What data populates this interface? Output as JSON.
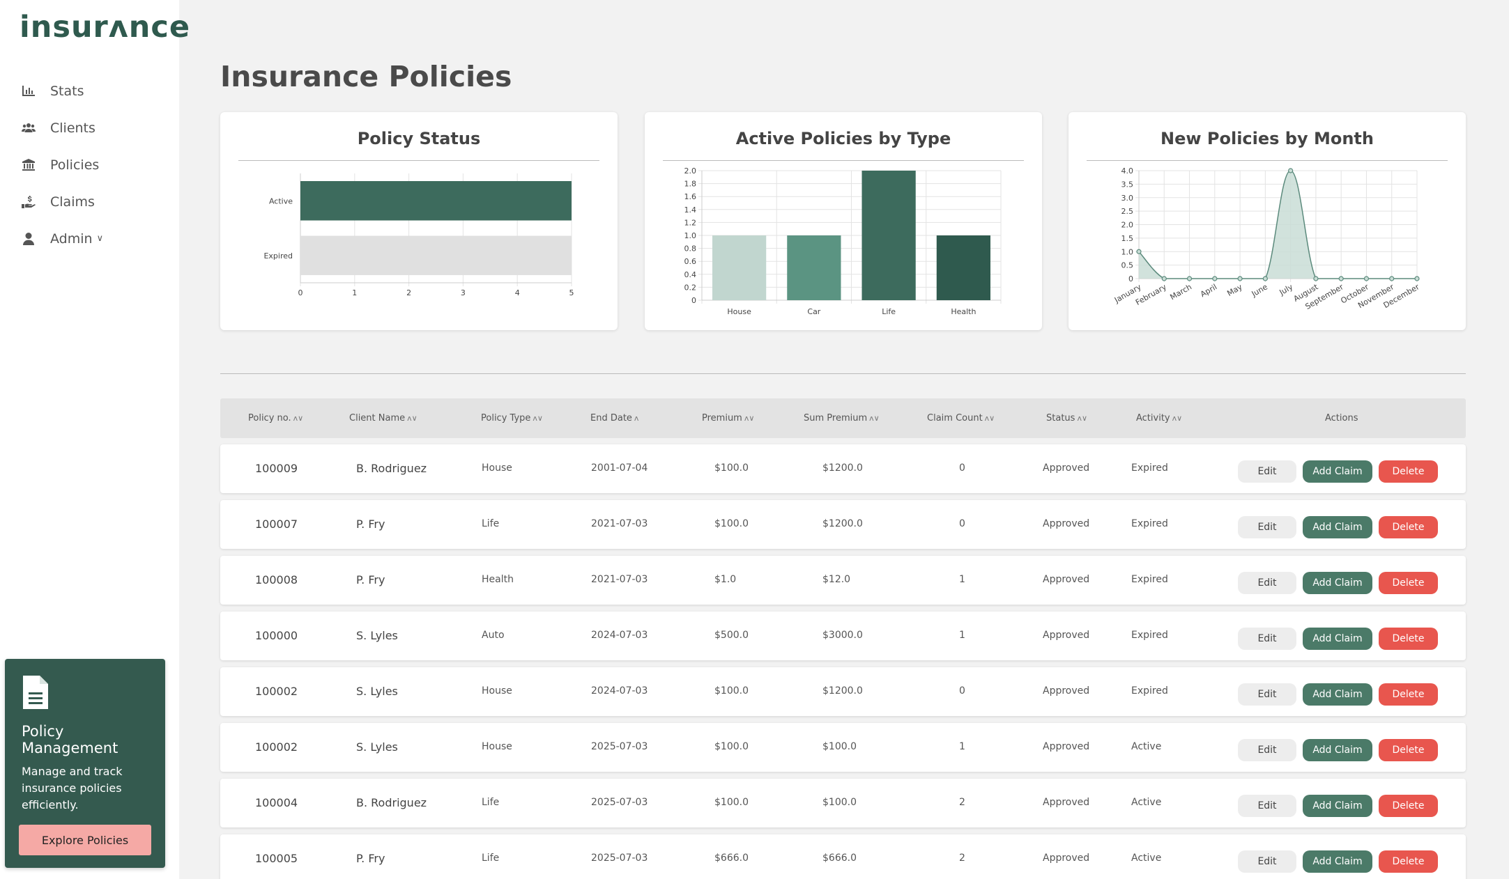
{
  "brand": {
    "logo": "insurʌnce"
  },
  "sidebar": {
    "items": [
      {
        "label": "Stats",
        "icon": "bar-chart-icon"
      },
      {
        "label": "Clients",
        "icon": "users-icon"
      },
      {
        "label": "Policies",
        "icon": "bank-icon"
      },
      {
        "label": "Claims",
        "icon": "hand-dollar-icon"
      },
      {
        "label": "Admin",
        "icon": "user-icon",
        "chevron": "∨"
      }
    ],
    "promo": {
      "title": "Policy Management",
      "text": "Manage and track insurance policies efficiently.",
      "button": "Explore Policies"
    }
  },
  "page": {
    "title": "Insurance Policies"
  },
  "colors": {
    "dark_green": "#3d6b5d",
    "light_gray": "#e0e0e0",
    "delete_red": "#e8564e",
    "accent_green": "#4b7a68"
  },
  "chart_data": [
    {
      "type": "bar",
      "orientation": "horizontal",
      "title": "Policy Status",
      "categories": [
        "Active",
        "Expired"
      ],
      "values": [
        5,
        5
      ],
      "xlim": [
        0,
        5
      ],
      "xticks": [
        "0",
        "1",
        "2",
        "3",
        "4",
        "5"
      ],
      "colors": [
        "#3d6b5d",
        "#e0e0e0"
      ],
      "grid": true
    },
    {
      "type": "bar",
      "title": "Active Policies by Type",
      "categories": [
        "House",
        "Car",
        "Life",
        "Health"
      ],
      "values": [
        1,
        1,
        2,
        1
      ],
      "ylim": [
        0,
        2
      ],
      "yticks": [
        "0",
        "0.2",
        "0.4",
        "0.6",
        "0.8",
        "1.0",
        "1.2",
        "1.4",
        "1.6",
        "1.8",
        "2.0"
      ],
      "colors": [
        "#c1d6cf",
        "#5b9482",
        "#3d6b5d",
        "#2f5a4e"
      ],
      "grid": true
    },
    {
      "type": "area",
      "title": "New Policies by Month",
      "categories": [
        "January",
        "February",
        "March",
        "April",
        "May",
        "June",
        "July",
        "August",
        "September",
        "October",
        "November",
        "December"
      ],
      "values": [
        1,
        0,
        0,
        0,
        0,
        0,
        4,
        0,
        0,
        0,
        0,
        0
      ],
      "ylim": [
        0,
        4
      ],
      "yticks": [
        "0",
        "0.5",
        "1.0",
        "1.5",
        "2.0",
        "2.5",
        "3.0",
        "3.5",
        "4.0"
      ],
      "colors": [
        "#5b8a7c"
      ],
      "grid": true
    }
  ],
  "table": {
    "headers": [
      {
        "label": "Policy no.",
        "sort": "ʌ∨"
      },
      {
        "label": "Client Name",
        "sort": "ʌ∨"
      },
      {
        "label": "Policy Type",
        "sort": "ʌ∨"
      },
      {
        "label": "End Date",
        "sort": "ʌ"
      },
      {
        "label": "Premium",
        "sort": "ʌ∨"
      },
      {
        "label": "Sum Premium",
        "sort": "ʌ∨"
      },
      {
        "label": "Claim Count",
        "sort": "ʌ∨"
      },
      {
        "label": "Status",
        "sort": "ʌ∨"
      },
      {
        "label": "Activity",
        "sort": "ʌ∨"
      },
      {
        "label": "Actions",
        "sort": ""
      }
    ],
    "action_labels": {
      "edit": "Edit",
      "add_claim": "Add Claim",
      "delete": "Delete"
    },
    "rows": [
      {
        "policy_no": "100009",
        "client": "B. Rodriguez",
        "type": "House",
        "end_date": "2001-07-04",
        "premium": "$100.0",
        "sum_premium": "$1200.0",
        "claims": "0",
        "status": "Approved",
        "activity": "Expired"
      },
      {
        "policy_no": "100007",
        "client": "P. Fry",
        "type": "Life",
        "end_date": "2021-07-03",
        "premium": "$100.0",
        "sum_premium": "$1200.0",
        "claims": "0",
        "status": "Approved",
        "activity": "Expired"
      },
      {
        "policy_no": "100008",
        "client": "P. Fry",
        "type": "Health",
        "end_date": "2021-07-03",
        "premium": "$1.0",
        "sum_premium": "$12.0",
        "claims": "1",
        "status": "Approved",
        "activity": "Expired"
      },
      {
        "policy_no": "100000",
        "client": "S. Lyles",
        "type": "Auto",
        "end_date": "2024-07-03",
        "premium": "$500.0",
        "sum_premium": "$3000.0",
        "claims": "1",
        "status": "Approved",
        "activity": "Expired"
      },
      {
        "policy_no": "100002",
        "client": "S. Lyles",
        "type": "House",
        "end_date": "2024-07-03",
        "premium": "$100.0",
        "sum_premium": "$1200.0",
        "claims": "0",
        "status": "Approved",
        "activity": "Expired"
      },
      {
        "policy_no": "100002",
        "client": "S. Lyles",
        "type": "House",
        "end_date": "2025-07-03",
        "premium": "$100.0",
        "sum_premium": "$100.0",
        "claims": "1",
        "status": "Approved",
        "activity": "Active"
      },
      {
        "policy_no": "100004",
        "client": "B. Rodriguez",
        "type": "Life",
        "end_date": "2025-07-03",
        "premium": "$100.0",
        "sum_premium": "$100.0",
        "claims": "2",
        "status": "Approved",
        "activity": "Active"
      },
      {
        "policy_no": "100005",
        "client": "P. Fry",
        "type": "Life",
        "end_date": "2025-07-03",
        "premium": "$666.0",
        "sum_premium": "$666.0",
        "claims": "2",
        "status": "Approved",
        "activity": "Active"
      }
    ]
  }
}
